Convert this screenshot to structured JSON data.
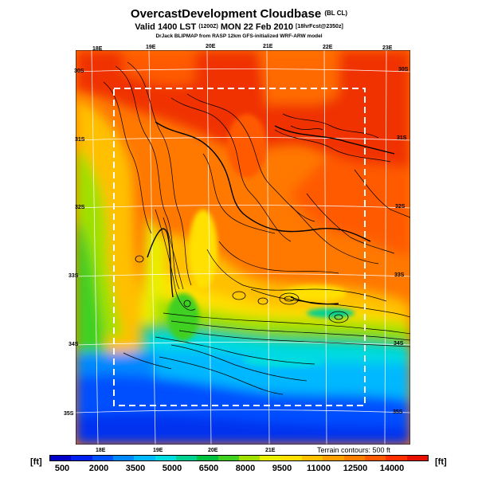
{
  "title": {
    "main": "OvercastDevelopment Cloudbase",
    "main_suffix": "(BL CL)",
    "valid_main": "Valid 1400 LST",
    "valid_local": "(1200Z)",
    "valid_date": "MON 22 Feb 2010",
    "valid_forecast": "[18hrFcst@2350z]",
    "source": "DrJack BLIPMAP from RASP 12km GFS-initialized WRF-ARW model"
  },
  "axes": {
    "lon_top": [
      "18E",
      "19E",
      "20E",
      "21E",
      "22E",
      "23E"
    ],
    "lon_bottom": [
      "18E",
      "19E",
      "20E",
      "21E"
    ],
    "lat_left": [
      "30S",
      "31S",
      "32S",
      "33S",
      "34S",
      "35S"
    ],
    "lat_right": [
      "30S",
      "31S",
      "32S",
      "33S",
      "34S",
      "35S"
    ]
  },
  "terrain_note": "Terrain contours: 500 ft",
  "colorbar": {
    "unit_left": "[ft]",
    "unit_right": "[ft]",
    "tick_labels": [
      "500",
      "2000",
      "3500",
      "5000",
      "6500",
      "8000",
      "9500",
      "11000",
      "12500",
      "14000"
    ],
    "colors": [
      "#0000c8",
      "#0020f0",
      "#0050ff",
      "#0088ff",
      "#00b8ff",
      "#00dce0",
      "#00d090",
      "#00c040",
      "#40d020",
      "#a0e000",
      "#e8f000",
      "#ffe000",
      "#ffc000",
      "#ffa000",
      "#ff8000",
      "#ff5a00",
      "#ff3000",
      "#e81000"
    ]
  },
  "style": {
    "inner_box_color": "#ffffff",
    "grid_color": "#ffffff",
    "contour_color": "#000000"
  }
}
